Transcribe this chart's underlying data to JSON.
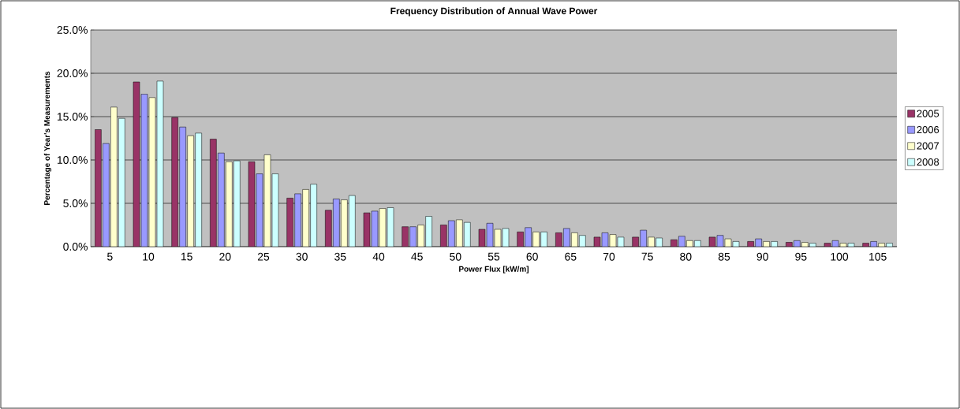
{
  "chart_data": {
    "type": "bar",
    "title": "Frequency Distribution of Annual Wave Power",
    "xlabel": "Power Flux [kW/m]",
    "ylabel": "Percentage of Year's Measurements",
    "categories": [
      "5",
      "10",
      "15",
      "20",
      "25",
      "30",
      "35",
      "40",
      "45",
      "50",
      "55",
      "60",
      "65",
      "70",
      "75",
      "80",
      "85",
      "90",
      "95",
      "100",
      "105"
    ],
    "series": [
      {
        "name": "2005",
        "color": "#993366",
        "values": [
          13.5,
          19.0,
          14.9,
          12.4,
          9.8,
          5.6,
          4.2,
          3.9,
          2.3,
          2.5,
          2.0,
          1.7,
          1.6,
          1.1,
          1.1,
          0.8,
          1.1,
          0.6,
          0.5,
          0.4,
          0.4
        ]
      },
      {
        "name": "2006",
        "color": "#9999ff",
        "values": [
          11.9,
          17.6,
          13.8,
          10.8,
          8.4,
          6.1,
          5.5,
          4.1,
          2.3,
          3.0,
          2.7,
          2.2,
          2.1,
          1.6,
          1.9,
          1.2,
          1.3,
          0.9,
          0.7,
          0.7,
          0.6
        ]
      },
      {
        "name": "2007",
        "color": "#ffffcc",
        "values": [
          16.1,
          17.2,
          12.8,
          9.8,
          10.6,
          6.6,
          5.4,
          4.4,
          2.5,
          3.1,
          2.0,
          1.7,
          1.6,
          1.4,
          1.1,
          0.7,
          0.9,
          0.6,
          0.5,
          0.4,
          0.4
        ]
      },
      {
        "name": "2008",
        "color": "#ccffff",
        "values": [
          14.8,
          19.1,
          13.1,
          9.9,
          8.4,
          7.2,
          5.9,
          4.5,
          3.5,
          2.8,
          2.1,
          1.7,
          1.3,
          1.1,
          1.0,
          0.7,
          0.6,
          0.6,
          0.4,
          0.4,
          0.4
        ]
      }
    ],
    "ylim": [
      0,
      25
    ],
    "yticks": [
      {
        "value": 0,
        "label": "0.0%"
      },
      {
        "value": 5,
        "label": "5.0%"
      },
      {
        "value": 10,
        "label": "10.0%"
      },
      {
        "value": 15,
        "label": "15.0%"
      },
      {
        "value": 20,
        "label": "20.0%"
      },
      {
        "value": 25,
        "label": "25.0%"
      }
    ],
    "grid": "y",
    "legend": "right"
  }
}
